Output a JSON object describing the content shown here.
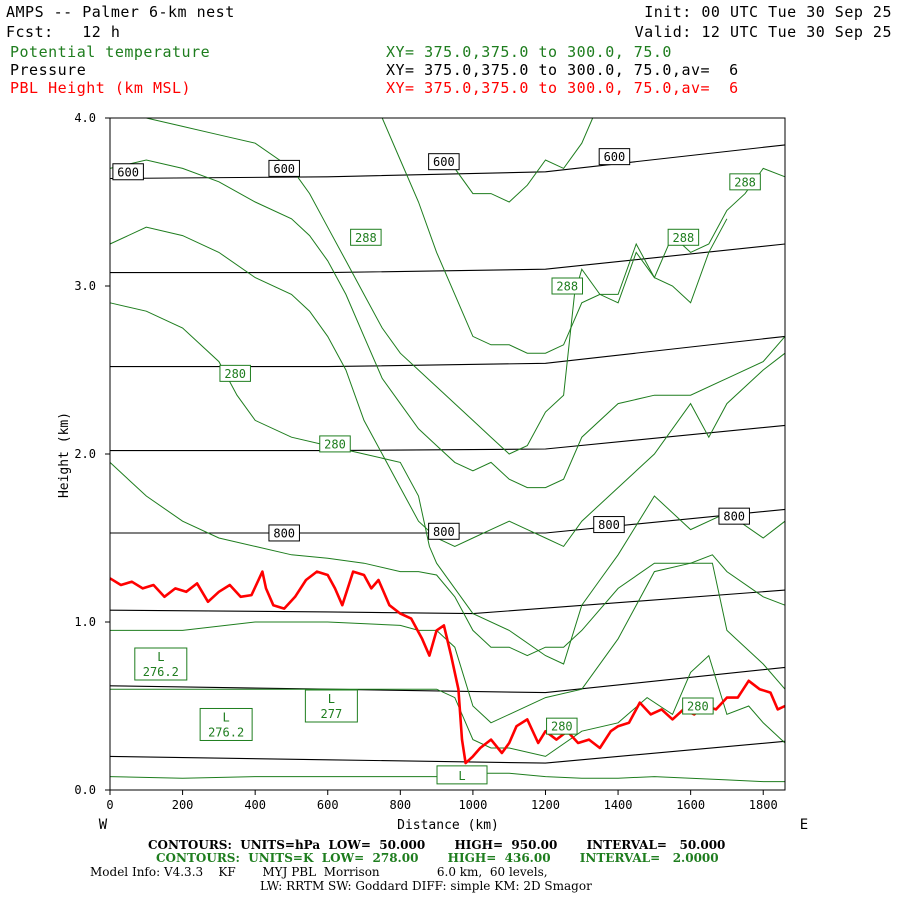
{
  "header": {
    "model_title": "AMPS -- Palmer 6-km nest",
    "init": "Init: 00 UTC Tue 30 Sep 25",
    "fcst": "Fcst:   12 h",
    "valid": "Valid: 12 UTC Tue 30 Sep 25",
    "fields": [
      {
        "name": "Potential temperature",
        "xsec": "XY= 375.0,375.0 to 300.0, 75.0",
        "color": "#1e7d1e"
      },
      {
        "name": "Pressure",
        "xsec": "XY= 375.0,375.0 to 300.0, 75.0,av=  6",
        "color": "#000000"
      },
      {
        "name": "PBL Height (km MSL)",
        "xsec": "XY= 375.0,375.0 to 300.0, 75.0,av=  6",
        "color": "#ff0000"
      }
    ]
  },
  "footer": {
    "pressure_contours": "CONTOURS:  UNITS=hPa  LOW=  50.000       HIGH=  950.00       INTERVAL=   50.000",
    "theta_contours": "CONTOURS:  UNITS=K  LOW=  278.00       HIGH=  436.00       INTERVAL=   2.0000",
    "model_info": "Model Info: V4.3.3    KF       MYJ PBL  Morrison               6.0 km,  60 levels,",
    "physics": "LW: RRTM SW: Goddard DIFF: simple KM: 2D Smagor"
  },
  "chart_data": {
    "type": "line",
    "xlabel": "Distance (km)",
    "ylabel": "Height (km)",
    "xlim": [
      0,
      1860
    ],
    "ylim": [
      0,
      4
    ],
    "x_ticks": [
      "0",
      "200",
      "400",
      "600",
      "800",
      "1000",
      "1200",
      "1400",
      "1600",
      "1800"
    ],
    "x_tick_values": [
      0,
      200,
      400,
      600,
      800,
      1000,
      1200,
      1400,
      1600,
      1800
    ],
    "y_ticks": [
      "0.0",
      "1.0",
      "2.0",
      "3.0",
      "4.0"
    ],
    "y_tick_values": [
      0,
      1,
      2,
      3,
      4
    ],
    "left_end": "W",
    "right_end": "E",
    "colors": {
      "pressure": "#000000",
      "theta": "#1e7d1e",
      "pbl": "#ff0000"
    },
    "pressure_isobars": [
      {
        "x": [
          0,
          600,
          1200,
          1860
        ],
        "y": [
          0.2,
          0.18,
          0.16,
          0.29
        ]
      },
      {
        "x": [
          0,
          600,
          1200,
          1860
        ],
        "y": [
          0.62,
          0.6,
          0.58,
          0.73
        ]
      },
      {
        "x": [
          0,
          600,
          1000,
          1860
        ],
        "y": [
          1.07,
          1.06,
          1.05,
          1.19
        ]
      },
      {
        "x": [
          0,
          600,
          1200,
          1860
        ],
        "y": [
          1.53,
          1.53,
          1.53,
          1.67
        ]
      },
      {
        "x": [
          0,
          600,
          1200,
          1860
        ],
        "y": [
          2.02,
          2.02,
          2.03,
          2.17
        ]
      },
      {
        "x": [
          0,
          600,
          1200,
          1860
        ],
        "y": [
          2.52,
          2.52,
          2.54,
          2.7
        ]
      },
      {
        "x": [
          0,
          600,
          1200,
          1860
        ],
        "y": [
          3.08,
          3.08,
          3.1,
          3.25
        ]
      },
      {
        "x": [
          0,
          600,
          1200,
          1860
        ],
        "y": [
          3.64,
          3.65,
          3.68,
          3.84
        ]
      }
    ],
    "pressure_labels": [
      {
        "text": "600",
        "x": 50,
        "y": 3.68
      },
      {
        "text": "600",
        "x": 480,
        "y": 3.7
      },
      {
        "text": "600",
        "x": 920,
        "y": 3.74
      },
      {
        "text": "600",
        "x": 1390,
        "y": 3.77
      },
      {
        "text": "800",
        "x": 480,
        "y": 1.53
      },
      {
        "text": "800",
        "x": 920,
        "y": 1.54
      },
      {
        "text": "800",
        "x": 1375,
        "y": 1.58
      },
      {
        "text": "800",
        "x": 1720,
        "y": 1.63
      }
    ],
    "theta_contours": [
      {
        "x": [
          0,
          200,
          400,
          600,
          800,
          900,
          940,
          1000,
          1100,
          1200,
          1300,
          1400,
          1500,
          1600,
          1700,
          1800,
          1860
        ],
        "y": [
          0.08,
          0.07,
          0.08,
          0.08,
          0.08,
          0.08,
          0.08,
          0.1,
          0.1,
          0.08,
          0.07,
          0.07,
          0.08,
          0.07,
          0.06,
          0.05,
          0.05
        ]
      },
      {
        "x": [
          0,
          200,
          400,
          600,
          800,
          900,
          950,
          1000,
          1050,
          1100,
          1200,
          1300,
          1400,
          1480,
          1550,
          1600,
          1650,
          1700,
          1760,
          1800,
          1860
        ],
        "y": [
          0.6,
          0.6,
          0.6,
          0.6,
          0.6,
          0.6,
          0.55,
          0.3,
          0.25,
          0.25,
          0.2,
          0.35,
          0.4,
          0.55,
          0.45,
          0.7,
          0.8,
          0.45,
          0.5,
          0.4,
          0.28
        ]
      },
      {
        "x": [
          0,
          200,
          400,
          600,
          800,
          850,
          900,
          950,
          1000,
          1050,
          1100,
          1200,
          1300,
          1400,
          1500,
          1600,
          1660,
          1700,
          1750,
          1800,
          1860
        ],
        "y": [
          0.95,
          0.95,
          1.0,
          1.0,
          0.98,
          0.95,
          0.95,
          0.85,
          0.5,
          0.4,
          0.45,
          0.55,
          0.6,
          0.9,
          1.3,
          1.35,
          1.35,
          0.95,
          0.85,
          0.75,
          0.6
        ]
      },
      {
        "x": [
          0,
          100,
          200,
          300,
          400,
          500,
          600,
          700,
          800,
          850,
          900,
          950,
          1000,
          1050,
          1100,
          1150,
          1200,
          1250,
          1300,
          1400,
          1500,
          1600,
          1660,
          1700,
          1800,
          1860
        ],
        "y": [
          1.95,
          1.75,
          1.6,
          1.5,
          1.45,
          1.4,
          1.38,
          1.35,
          1.3,
          1.3,
          1.28,
          1.15,
          0.95,
          0.85,
          0.85,
          0.8,
          0.85,
          0.85,
          0.95,
          1.2,
          1.35,
          1.35,
          1.4,
          1.3,
          1.15,
          1.1
        ]
      },
      {
        "x": [
          0,
          100,
          200,
          300,
          350,
          400,
          500,
          600,
          700,
          800,
          850,
          880,
          900,
          950,
          1000,
          1100,
          1200,
          1250,
          1300,
          1350,
          1400,
          1500,
          1600,
          1700,
          1800,
          1860
        ],
        "y": [
          2.9,
          2.85,
          2.75,
          2.55,
          2.35,
          2.2,
          2.1,
          2.05,
          2.0,
          1.95,
          1.75,
          1.45,
          1.35,
          1.2,
          1.05,
          0.95,
          0.8,
          0.75,
          1.1,
          1.25,
          1.4,
          1.75,
          1.55,
          1.65,
          1.5,
          1.6
        ]
      },
      {
        "x": [
          0,
          100,
          200,
          300,
          400,
          500,
          550,
          600,
          650,
          700,
          750,
          800,
          850,
          900,
          950,
          1000,
          1050,
          1100,
          1150,
          1200,
          1250,
          1300,
          1400,
          1500,
          1600,
          1650,
          1700,
          1800,
          1860
        ],
        "y": [
          3.25,
          3.35,
          3.3,
          3.2,
          3.05,
          2.95,
          2.85,
          2.7,
          2.5,
          2.2,
          2.0,
          1.8,
          1.6,
          1.5,
          1.45,
          1.5,
          1.55,
          1.6,
          1.55,
          1.5,
          1.45,
          1.6,
          1.8,
          2.0,
          2.3,
          2.1,
          2.3,
          2.5,
          2.6
        ]
      },
      {
        "x": [
          0,
          100,
          200,
          300,
          400,
          500,
          550,
          600,
          650,
          700,
          750,
          800,
          850,
          900,
          950,
          1000,
          1050,
          1100,
          1150,
          1200,
          1250,
          1300,
          1400,
          1500,
          1600,
          1700,
          1800,
          1860
        ],
        "y": [
          3.7,
          3.75,
          3.7,
          3.62,
          3.5,
          3.4,
          3.3,
          3.15,
          2.95,
          2.7,
          2.45,
          2.3,
          2.15,
          2.05,
          1.95,
          1.9,
          1.95,
          1.85,
          1.8,
          1.8,
          1.85,
          2.1,
          2.3,
          2.35,
          2.35,
          2.45,
          2.55,
          2.7
        ]
      },
      {
        "x": [
          0,
          100,
          200,
          300,
          400,
          500,
          550,
          600,
          650,
          700,
          750,
          800,
          850,
          900,
          950,
          1000,
          1050,
          1100,
          1150,
          1200,
          1250,
          1280,
          1300,
          1350,
          1400,
          1450,
          1500,
          1550,
          1600,
          1650,
          1700,
          1750,
          1800,
          1860
        ],
        "y": [
          4.0,
          4.0,
          3.95,
          3.9,
          3.85,
          3.7,
          3.55,
          3.35,
          3.15,
          2.95,
          2.75,
          2.6,
          2.5,
          2.4,
          2.3,
          2.2,
          2.1,
          2.0,
          2.05,
          2.25,
          2.35,
          2.95,
          3.1,
          2.95,
          2.9,
          3.2,
          3.05,
          3.3,
          3.2,
          3.25,
          3.45,
          3.55,
          3.7,
          3.65
        ]
      },
      {
        "x": [
          750,
          800,
          850,
          900,
          950,
          1000,
          1050,
          1100,
          1150,
          1200,
          1250,
          1300,
          1350,
          1400,
          1450,
          1500,
          1550,
          1600,
          1650,
          1700
        ],
        "y": [
          4.0,
          3.75,
          3.5,
          3.2,
          2.95,
          2.7,
          2.65,
          2.65,
          2.6,
          2.6,
          2.65,
          2.9,
          2.95,
          2.95,
          3.25,
          3.05,
          3.0,
          2.9,
          3.2,
          3.4
        ]
      },
      {
        "x": [
          920,
          950,
          1000,
          1050,
          1100,
          1150,
          1200,
          1250,
          1300,
          1330
        ],
        "y": [
          3.75,
          3.7,
          3.55,
          3.55,
          3.5,
          3.6,
          3.75,
          3.7,
          3.85,
          4.0
        ]
      }
    ],
    "theta_labels": [
      {
        "text": "288",
        "x": 705,
        "y": 3.29
      },
      {
        "text": "288",
        "x": 1260,
        "y": 3.0
      },
      {
        "text": "288",
        "x": 1580,
        "y": 3.29
      },
      {
        "text": "288",
        "x": 1750,
        "y": 3.62
      },
      {
        "text": "280",
        "x": 345,
        "y": 2.48
      },
      {
        "text": "280",
        "x": 620,
        "y": 2.06
      },
      {
        "text": "280",
        "x": 1245,
        "y": 0.38
      },
      {
        "text": "280",
        "x": 1620,
        "y": 0.5
      }
    ],
    "lows": [
      {
        "text": "L",
        "value": "276.2",
        "x": 140,
        "y": 0.75
      },
      {
        "text": "L",
        "value": "276.2",
        "x": 320,
        "y": 0.39
      },
      {
        "text": "L",
        "value": "277",
        "x": 610,
        "y": 0.5
      },
      {
        "text": "L",
        "value": "",
        "x": 970,
        "y": 0.09
      }
    ],
    "pbl_height": {
      "name": "PBL Height (km MSL)",
      "x": [
        0,
        30,
        60,
        90,
        120,
        150,
        180,
        210,
        240,
        270,
        300,
        330,
        360,
        390,
        420,
        430,
        450,
        480,
        510,
        540,
        570,
        600,
        620,
        640,
        670,
        700,
        720,
        740,
        770,
        800,
        830,
        860,
        880,
        900,
        920,
        940,
        960,
        970,
        980,
        1000,
        1020,
        1050,
        1080,
        1100,
        1120,
        1150,
        1180,
        1200,
        1230,
        1260,
        1290,
        1320,
        1350,
        1380,
        1400,
        1430,
        1460,
        1490,
        1520,
        1550,
        1580,
        1610,
        1640,
        1670,
        1700,
        1730,
        1760,
        1790,
        1820,
        1840,
        1860
      ],
      "y": [
        1.26,
        1.22,
        1.24,
        1.2,
        1.22,
        1.15,
        1.2,
        1.18,
        1.23,
        1.12,
        1.18,
        1.22,
        1.15,
        1.16,
        1.3,
        1.2,
        1.1,
        1.08,
        1.15,
        1.25,
        1.3,
        1.28,
        1.2,
        1.1,
        1.3,
        1.28,
        1.2,
        1.25,
        1.1,
        1.05,
        1.02,
        0.9,
        0.8,
        0.95,
        0.98,
        0.8,
        0.6,
        0.3,
        0.16,
        0.2,
        0.25,
        0.3,
        0.22,
        0.28,
        0.38,
        0.42,
        0.28,
        0.35,
        0.3,
        0.35,
        0.28,
        0.3,
        0.25,
        0.35,
        0.38,
        0.4,
        0.52,
        0.45,
        0.48,
        0.42,
        0.48,
        0.45,
        0.5,
        0.48,
        0.55,
        0.55,
        0.65,
        0.6,
        0.58,
        0.48,
        0.5
      ]
    }
  }
}
